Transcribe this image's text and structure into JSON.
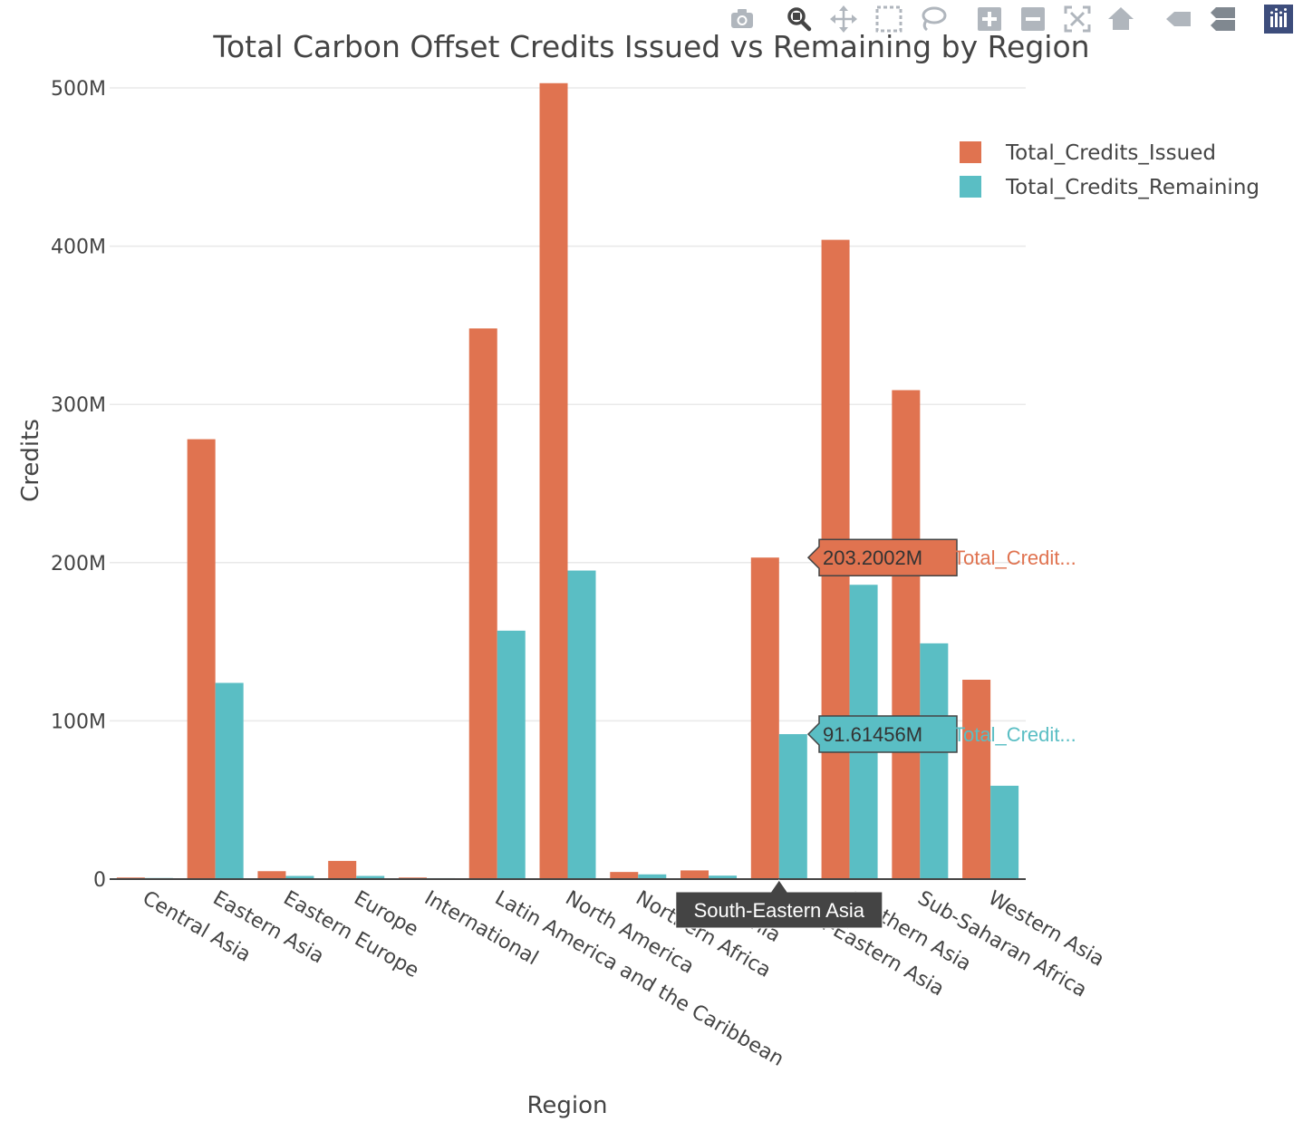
{
  "chart_data": {
    "type": "bar",
    "title": "Total Carbon Offset Credits Issued vs Remaining by Region",
    "xlabel": "Region",
    "ylabel": "Credits",
    "ylim": [
      0,
      500000000
    ],
    "y_ticks": [
      {
        "value": 0,
        "label": "0"
      },
      {
        "value": 100000000,
        "label": "100M"
      },
      {
        "value": 200000000,
        "label": "200M"
      },
      {
        "value": 300000000,
        "label": "300M"
      },
      {
        "value": 400000000,
        "label": "400M"
      },
      {
        "value": 500000000,
        "label": "500M"
      }
    ],
    "grid": true,
    "legend_position": "top-right",
    "categories": [
      "Central Asia",
      "Eastern Asia",
      "Eastern Europe",
      "Europe",
      "International",
      "Latin America and the Caribbean",
      "North America",
      "Northern Africa",
      "Oceania",
      "South-Eastern Asia",
      "Southern Asia",
      "Sub-Saharan Africa",
      "Western Asia"
    ],
    "series": [
      {
        "name": "Total_Credits_Issued",
        "color": "#e07350",
        "values": [
          1000000,
          278000000,
          5000000,
          11500000,
          1000000,
          348000000,
          503000000,
          4500000,
          5500000,
          203200200,
          404000000,
          309000000,
          126000000
        ]
      },
      {
        "name": "Total_Credits_Remaining",
        "color": "#5abec4",
        "values": [
          700000,
          124000000,
          2000000,
          2000000,
          600000,
          157000000,
          195000000,
          3000000,
          2200000,
          91614560,
          186000000,
          149000000,
          59000000
        ]
      }
    ],
    "hover": {
      "category": "South-Eastern Asia",
      "labels": [
        {
          "series": "Total_Credits_Issued",
          "value_text": "203.2002M",
          "name_text": "Total_Credit..."
        },
        {
          "series": "Total_Credits_Remaining",
          "value_text": "91.61456M",
          "name_text": "Total_Credit..."
        }
      ]
    }
  },
  "toolbar": {
    "icons": [
      "camera-icon",
      "zoom-icon",
      "pan-icon",
      "box-select-icon",
      "lasso-select-icon",
      "zoom-in-icon",
      "zoom-out-icon",
      "autoscale-icon",
      "reset-axes-icon",
      "spike-lines-icon",
      "compare-data-icon",
      "plotly-logo-icon"
    ],
    "active_icon": "zoom-icon"
  }
}
